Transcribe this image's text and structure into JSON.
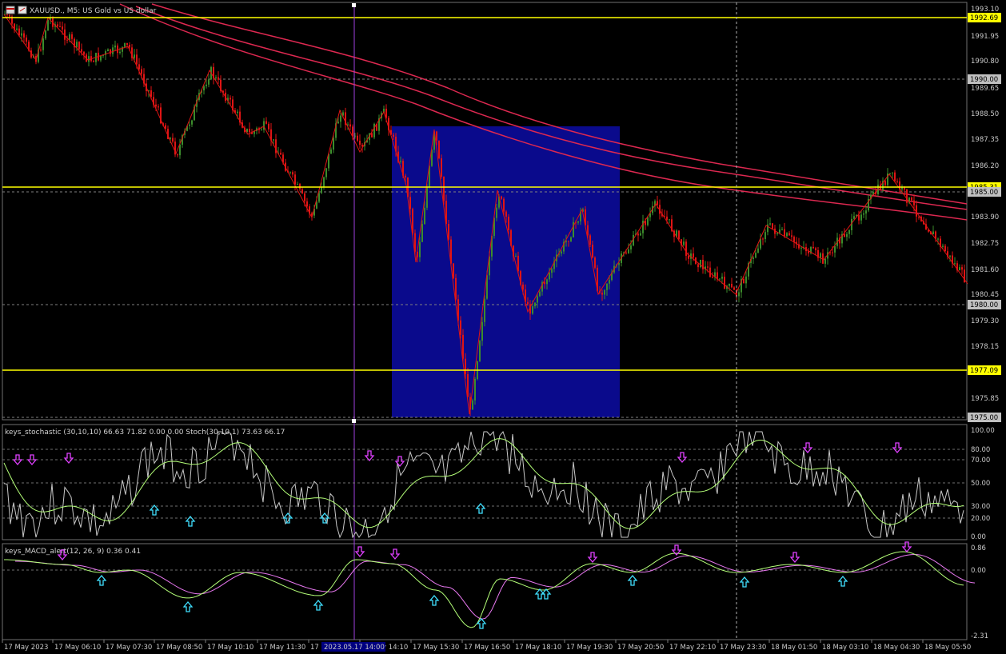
{
  "window": {
    "symbol_title": "XAUUSD., M5: US Gold vs US dollar",
    "icon": "chart-window-icon"
  },
  "colors": {
    "background": "#000000",
    "bull_candle": "#3c8c2c",
    "bear_candle": "#e01414",
    "zigzag": "#e01414",
    "moving_average": "#dc2850",
    "level_line": "#ffff00",
    "zone_fill": "#0a0a8c",
    "vertical_marker": "#a040e0",
    "stoch_main": "#c8c8c8",
    "stoch_signal": "#b4ff78",
    "macd_signal": "#e878f0",
    "macd_main": "#b4ff78",
    "arrow_up": "#40e0ff",
    "arrow_down": "#e040ff"
  },
  "price_axis": {
    "labels": [
      "1993.10",
      "1991.95",
      "1990.80",
      "1989.65",
      "1988.50",
      "1987.35",
      "1986.20",
      "1983.90",
      "1982.75",
      "1981.60",
      "1980.45",
      "1979.30",
      "1978.15",
      "1975.85"
    ]
  },
  "price_tags": [
    {
      "text": "1992.69",
      "style": "yellow"
    },
    {
      "text": "1990.00",
      "style": "gray"
    },
    {
      "text": "1985.31",
      "style": "yellow"
    },
    {
      "text": "1985.00",
      "style": "gray"
    },
    {
      "text": "1980.00",
      "style": "gray"
    },
    {
      "text": "1977.09",
      "style": "yellow"
    },
    {
      "text": "1975.00",
      "style": "gray"
    }
  ],
  "stochastic": {
    "title": "keys_stochastic (30,10,10) 66.63 71.82 0.00 0.00 Stoch(30,10,1) 73.63 66.17",
    "levels": [
      "100.00",
      "80.00",
      "70.00",
      "50.00",
      "30.00",
      "20.00",
      "0.00"
    ]
  },
  "macd": {
    "title": "keys_MACD_alert(12, 26, 9) 0.36 0.41",
    "levels": [
      "0.86",
      "0.00",
      "-2.31"
    ]
  },
  "time_axis": {
    "labels": [
      "17 May 2023",
      "17 May 06:10",
      "17 May 07:30",
      "17 May 08:50",
      "17 May 10:10",
      "17 May 11:30",
      "17 May 12:50",
      "17 May 14:10",
      "17 May 15:30",
      "17 May 16:50",
      "17 May 18:10",
      "17 May 19:30",
      "17 May 20:50",
      "17 May 22:10",
      "17 May 23:30",
      "18 May 01:50",
      "18 May 03:10",
      "18 May 04:30",
      "18 May 05:50"
    ],
    "highlight": "2023.05.17 14:00"
  }
}
